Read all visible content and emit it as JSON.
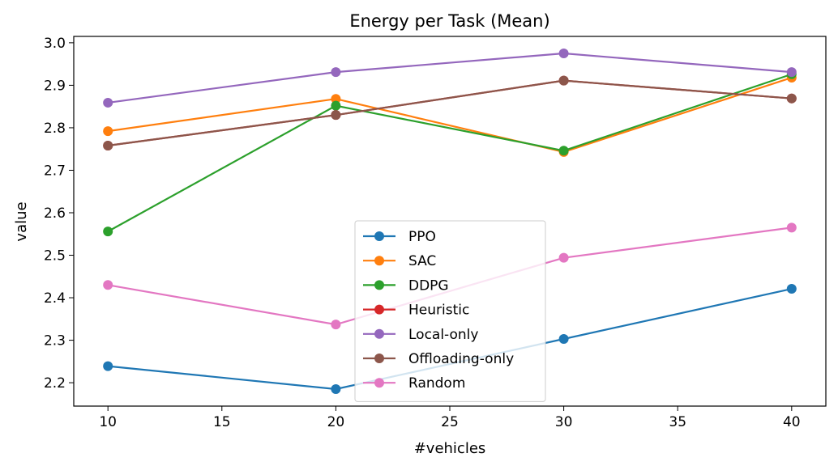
{
  "chart_data": {
    "type": "line",
    "title": "Energy per Task (Mean)",
    "xlabel": "#vehicles",
    "ylabel": "value",
    "x": [
      10,
      20,
      30,
      40
    ],
    "xlim": [
      8.5,
      41.5
    ],
    "ylim": [
      2.145,
      3.015
    ],
    "xticks": [
      10,
      15,
      20,
      25,
      30,
      35,
      40
    ],
    "yticks": [
      2.2,
      2.3,
      2.4,
      2.5,
      2.6,
      2.7,
      2.8,
      2.9,
      3.0
    ],
    "ytick_labels": [
      "2.2",
      "2.3",
      "2.4",
      "2.5",
      "2.6",
      "2.7",
      "2.8",
      "2.9",
      "3.0"
    ],
    "grid": false,
    "legend_position": "bottom-center",
    "series": [
      {
        "name": "PPO",
        "color": "#1f77b4",
        "values": [
          2.239,
          2.185,
          2.303,
          2.421
        ]
      },
      {
        "name": "SAC",
        "color": "#ff7f0e",
        "values": [
          2.792,
          2.868,
          2.743,
          2.918
        ]
      },
      {
        "name": "DDPG",
        "color": "#2ca02c",
        "values": [
          2.556,
          2.852,
          2.746,
          2.926
        ]
      },
      {
        "name": "Heuristic",
        "color": "#d62728",
        "values": [
          2.758,
          2.83,
          2.911,
          2.869
        ]
      },
      {
        "name": "Local-only",
        "color": "#9467bd",
        "values": [
          2.859,
          2.931,
          2.975,
          2.931
        ]
      },
      {
        "name": "Offloading-only",
        "color": "#8c564b",
        "values": [
          2.758,
          2.83,
          2.911,
          2.869
        ]
      },
      {
        "name": "Random",
        "color": "#e377c2",
        "values": [
          2.43,
          2.337,
          2.494,
          2.565
        ]
      }
    ]
  }
}
